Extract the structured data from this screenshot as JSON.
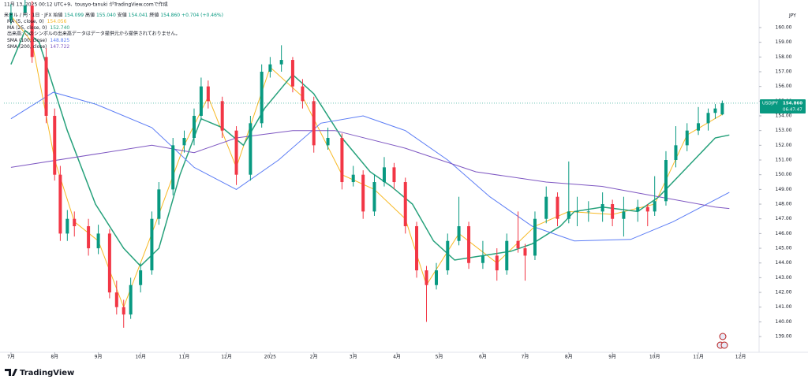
{
  "chart_data": {
    "type": "candlestick",
    "created": "11月 13, 2025 00:12 UTC+9、tousyo-tanuki がTradingView.comで作成",
    "title": "米ドル / 円 · 1日 · JFX",
    "ohlc": [
      {
        "name": "始値",
        "label": "154.099"
      },
      {
        "name": "高値",
        "label": "155.040"
      },
      {
        "name": "安値",
        "label": "154.041"
      },
      {
        "name": "終値",
        "label": "154.860"
      }
    ],
    "change": "+0.704 (+0.46%)",
    "volume_note": "出来高: このシンボルの出来高データはデータ提供元から提供されておりません。",
    "currency": "JPY",
    "symbol_tag": "USDJPY",
    "price_label": "154.860",
    "countdown": "06:47:47",
    "watermark": "TradingView",
    "up_color": "#089981",
    "down_color": "#f23645",
    "grid": false,
    "xlim": [
      -5,
      530
    ],
    "ylim": [
      138.04,
      161.07
    ],
    "xticks": [
      {
        "value": 0,
        "label": "7月"
      },
      {
        "value": 31,
        "label": "8月"
      },
      {
        "value": 62,
        "label": "9月"
      },
      {
        "value": 92,
        "label": "10月"
      },
      {
        "value": 123,
        "label": "11月"
      },
      {
        "value": 153,
        "label": "12月"
      },
      {
        "value": 184,
        "label": "2025"
      },
      {
        "value": 215,
        "label": "2月"
      },
      {
        "value": 243,
        "label": "3月"
      },
      {
        "value": 274,
        "label": "4月"
      },
      {
        "value": 304,
        "label": "5月"
      },
      {
        "value": 335,
        "label": "6月"
      },
      {
        "value": 365,
        "label": "7月"
      },
      {
        "value": 396,
        "label": "8月"
      },
      {
        "value": 427,
        "label": "9月"
      },
      {
        "value": 457,
        "label": "10月"
      },
      {
        "value": 488,
        "label": "11月"
      },
      {
        "value": 518,
        "label": "12月"
      }
    ],
    "yticks": [
      {
        "value": 139,
        "label": "139.00"
      },
      {
        "value": 140,
        "label": "140.00"
      },
      {
        "value": 141,
        "label": "141.00"
      },
      {
        "value": 142,
        "label": "142.00"
      },
      {
        "value": 143,
        "label": "143.00"
      },
      {
        "value": 144,
        "label": "144.00"
      },
      {
        "value": 145,
        "label": "145.00"
      },
      {
        "value": 146,
        "label": "146.00"
      },
      {
        "value": 147,
        "label": "147.00"
      },
      {
        "value": 148,
        "label": "148.00"
      },
      {
        "value": 149,
        "label": "149.00"
      },
      {
        "value": 150,
        "label": "150.00"
      },
      {
        "value": 151,
        "label": "151.00"
      },
      {
        "value": 152,
        "label": "152.00"
      },
      {
        "value": 153,
        "label": "153.00"
      },
      {
        "value": 154,
        "label": "154.00"
      },
      {
        "value": 155,
        "label": "155.00"
      },
      {
        "value": 156,
        "label": "156.00"
      },
      {
        "value": 157,
        "label": "157.00"
      },
      {
        "value": 158,
        "label": "158.00"
      },
      {
        "value": 159,
        "label": "159.00"
      },
      {
        "value": 160,
        "label": "160.00"
      }
    ],
    "candles": [
      {
        "x": 0,
        "open": 160.5,
        "high": 161.6,
        "low": 160.2,
        "close": 161
      },
      {
        "x": 10,
        "open": 161,
        "high": 162,
        "low": 160.8,
        "close": 161.5
      },
      {
        "x": 15,
        "open": 161.5,
        "high": 161.8,
        "low": 157.6,
        "close": 158
      },
      {
        "x": 25,
        "open": 158,
        "high": 158.6,
        "low": 153.5,
        "close": 154
      },
      {
        "x": 31,
        "open": 154,
        "high": 154.5,
        "low": 149.6,
        "close": 150
      },
      {
        "x": 35,
        "open": 150,
        "high": 150.6,
        "low": 145.5,
        "close": 146
      },
      {
        "x": 40,
        "open": 146,
        "high": 147.6,
        "low": 145.5,
        "close": 147
      },
      {
        "x": 45,
        "open": 147,
        "high": 147.5,
        "low": 145.8,
        "close": 146.5
      },
      {
        "x": 55,
        "open": 146.5,
        "high": 147,
        "low": 144.5,
        "close": 145
      },
      {
        "x": 62,
        "open": 145,
        "high": 146.6,
        "low": 144.6,
        "close": 146
      },
      {
        "x": 70,
        "open": 146,
        "high": 146.3,
        "low": 141.6,
        "close": 142
      },
      {
        "x": 75,
        "open": 142,
        "high": 142.8,
        "low": 140.5,
        "close": 141
      },
      {
        "x": 80,
        "open": 141,
        "high": 141.5,
        "low": 139.6,
        "close": 140.5
      },
      {
        "x": 85,
        "open": 140.5,
        "high": 143,
        "low": 140.2,
        "close": 142.5
      },
      {
        "x": 92,
        "open": 142.5,
        "high": 144,
        "low": 142,
        "close": 143.5
      },
      {
        "x": 100,
        "open": 143.5,
        "high": 147.5,
        "low": 143.2,
        "close": 147
      },
      {
        "x": 105,
        "open": 147,
        "high": 149.5,
        "low": 146.6,
        "close": 149
      },
      {
        "x": 115,
        "open": 149,
        "high": 152.5,
        "low": 148.6,
        "close": 152
      },
      {
        "x": 123,
        "open": 152,
        "high": 153,
        "low": 151.5,
        "close": 152.5
      },
      {
        "x": 130,
        "open": 152.5,
        "high": 154.5,
        "low": 152,
        "close": 154
      },
      {
        "x": 135,
        "open": 154,
        "high": 156.6,
        "low": 153.7,
        "close": 156
      },
      {
        "x": 140,
        "open": 156,
        "high": 156.4,
        "low": 154.5,
        "close": 155
      },
      {
        "x": 150,
        "open": 155,
        "high": 155.3,
        "low": 152.5,
        "close": 153
      },
      {
        "x": 160,
        "open": 153,
        "high": 153.3,
        "low": 149.3,
        "close": 150
      },
      {
        "x": 170,
        "open": 150,
        "high": 154,
        "low": 149.6,
        "close": 153.5
      },
      {
        "x": 178,
        "open": 153.5,
        "high": 157.5,
        "low": 153.2,
        "close": 157
      },
      {
        "x": 184,
        "open": 157,
        "high": 158,
        "low": 156.6,
        "close": 157.5
      },
      {
        "x": 192,
        "open": 157.5,
        "high": 158.8,
        "low": 157,
        "close": 157.8
      },
      {
        "x": 200,
        "open": 157.8,
        "high": 158,
        "low": 155.6,
        "close": 156
      },
      {
        "x": 207,
        "open": 156,
        "high": 156.5,
        "low": 154.5,
        "close": 155
      },
      {
        "x": 215,
        "open": 155,
        "high": 155.3,
        "low": 151.5,
        "close": 152
      },
      {
        "x": 225,
        "open": 152,
        "high": 153.2,
        "low": 151.7,
        "close": 152.5
      },
      {
        "x": 235,
        "open": 152.5,
        "high": 152.8,
        "low": 149,
        "close": 149.5
      },
      {
        "x": 243,
        "open": 149.5,
        "high": 150.6,
        "low": 149.2,
        "close": 150
      },
      {
        "x": 250,
        "open": 150,
        "high": 150.3,
        "low": 147,
        "close": 147.5
      },
      {
        "x": 258,
        "open": 147.5,
        "high": 150,
        "low": 147.2,
        "close": 149.5
      },
      {
        "x": 265,
        "open": 149.5,
        "high": 151.2,
        "low": 149.2,
        "close": 150.5
      },
      {
        "x": 272,
        "open": 150.5,
        "high": 150.8,
        "low": 149,
        "close": 149.5
      },
      {
        "x": 280,
        "open": 149.5,
        "high": 149.8,
        "low": 146,
        "close": 146.5
      },
      {
        "x": 288,
        "open": 146.5,
        "high": 146.8,
        "low": 143,
        "close": 143.5
      },
      {
        "x": 295,
        "open": 143.5,
        "high": 143.8,
        "low": 140,
        "close": 142.5
      },
      {
        "x": 302,
        "open": 142.5,
        "high": 144,
        "low": 142.2,
        "close": 143.5
      },
      {
        "x": 310,
        "open": 143.5,
        "high": 146,
        "low": 143.2,
        "close": 145.5
      },
      {
        "x": 318,
        "open": 145.5,
        "high": 148.5,
        "low": 145.2,
        "close": 146.5
      },
      {
        "x": 325,
        "open": 146.5,
        "high": 146.8,
        "low": 143.6,
        "close": 144
      },
      {
        "x": 335,
        "open": 144,
        "high": 145.5,
        "low": 143.6,
        "close": 144.5
      },
      {
        "x": 345,
        "open": 144.5,
        "high": 145,
        "low": 142.8,
        "close": 143.5
      },
      {
        "x": 352,
        "open": 143.5,
        "high": 146,
        "low": 143.2,
        "close": 145.5
      },
      {
        "x": 360,
        "open": 145.5,
        "high": 147.5,
        "low": 144.7,
        "close": 145
      },
      {
        "x": 365,
        "open": 145,
        "high": 145.3,
        "low": 142.8,
        "close": 144.5
      },
      {
        "x": 372,
        "open": 144.5,
        "high": 147.5,
        "low": 144.2,
        "close": 147
      },
      {
        "x": 380,
        "open": 147,
        "high": 149.2,
        "low": 146.7,
        "close": 148.5
      },
      {
        "x": 388,
        "open": 148.5,
        "high": 148.8,
        "low": 146.5,
        "close": 147
      },
      {
        "x": 396,
        "open": 147,
        "high": 150.9,
        "low": 146.7,
        "close": 147.5
      },
      {
        "x": 402,
        "open": 147.5,
        "high": 148.5,
        "low": 146.5,
        "close": 147.5
      },
      {
        "x": 410,
        "open": 147.5,
        "high": 148.2,
        "low": 146.8,
        "close": 147.5
      },
      {
        "x": 420,
        "open": 147.5,
        "high": 148.8,
        "low": 146.8,
        "close": 148
      },
      {
        "x": 427,
        "open": 148,
        "high": 148.3,
        "low": 146.5,
        "close": 147
      },
      {
        "x": 435,
        "open": 147,
        "high": 148.5,
        "low": 145.8,
        "close": 147.5
      },
      {
        "x": 445,
        "open": 147.5,
        "high": 148.3,
        "low": 146.8,
        "close": 147.8
      },
      {
        "x": 452,
        "open": 147.8,
        "high": 148,
        "low": 146.5,
        "close": 147.5
      },
      {
        "x": 457,
        "open": 147.5,
        "high": 149.9,
        "low": 147.2,
        "close": 148.2
      },
      {
        "x": 465,
        "open": 148.2,
        "high": 151.6,
        "low": 147.9,
        "close": 151
      },
      {
        "x": 472,
        "open": 151,
        "high": 153.3,
        "low": 150.5,
        "close": 152
      },
      {
        "x": 480,
        "open": 152,
        "high": 153.5,
        "low": 151.6,
        "close": 153
      },
      {
        "x": 488,
        "open": 153,
        "high": 154.6,
        "low": 152.7,
        "close": 153.5
      },
      {
        "x": 495,
        "open": 153.5,
        "high": 154.5,
        "low": 153,
        "close": 154.2
      },
      {
        "x": 500,
        "open": 154.2,
        "high": 154.8,
        "low": 153.8,
        "close": 154.5
      },
      {
        "x": 505,
        "open": 154.099,
        "high": 155.04,
        "low": 154.041,
        "close": 154.86
      }
    ],
    "series": [
      {
        "name": "MA (5, close, 0)",
        "value_label": "154.056",
        "color": "#f7b924",
        "x": [
          0,
          15,
          31,
          45,
          62,
          80,
          100,
          123,
          140,
          160,
          184,
          207,
          235,
          258,
          280,
          295,
          318,
          345,
          372,
          396,
          427,
          457,
          480,
          505
        ],
        "values": [
          160.8,
          159,
          151,
          146.8,
          145.5,
          141,
          146,
          152,
          155.3,
          150.5,
          157.3,
          155.3,
          150,
          149,
          147,
          142.5,
          146,
          144,
          146.5,
          147.5,
          147.3,
          148,
          152.7,
          154.1
        ]
      },
      {
        "name": "MA (25, close, 0)",
        "value_label": "152.740",
        "color": "#26a17b",
        "x": [
          0,
          10,
          20,
          40,
          60,
          80,
          92,
          105,
          120,
          135,
          150,
          165,
          180,
          200,
          215,
          235,
          255,
          270,
          285,
          300,
          315,
          335,
          355,
          370,
          390,
          400,
          420,
          445,
          460,
          480,
          500,
          510
        ],
        "values": [
          157.5,
          159.8,
          159,
          153,
          148,
          145,
          143.8,
          145,
          150,
          153.8,
          153.2,
          152,
          154.5,
          156.8,
          155.5,
          152.5,
          150.2,
          149.2,
          148,
          145.5,
          144.2,
          144.5,
          144.8,
          145.3,
          146.5,
          147.5,
          147.8,
          147.5,
          148.5,
          150.5,
          152.5,
          152.7
        ]
      },
      {
        "name": "SMA (100, close)",
        "value_label": "148.825",
        "color": "#5b7cf5",
        "x": [
          0,
          30,
          60,
          100,
          130,
          160,
          190,
          220,
          250,
          280,
          310,
          340,
          370,
          400,
          440,
          470,
          510
        ],
        "values": [
          153.8,
          155.6,
          154.8,
          153.2,
          150.5,
          149,
          151,
          153.5,
          154,
          153,
          151,
          148.5,
          146.5,
          145.5,
          145.6,
          146.8,
          148.8
        ]
      },
      {
        "name": "SMA (200, close)",
        "value_label": "147.722",
        "color": "#7e57c2",
        "x": [
          0,
          100,
          130,
          160,
          200,
          230,
          280,
          330,
          380,
          420,
          460,
          500,
          510
        ],
        "values": [
          150.5,
          152,
          151.5,
          152.5,
          153,
          153,
          151.8,
          150.2,
          149.5,
          149.2,
          148.5,
          147.8,
          147.7
        ]
      }
    ]
  }
}
